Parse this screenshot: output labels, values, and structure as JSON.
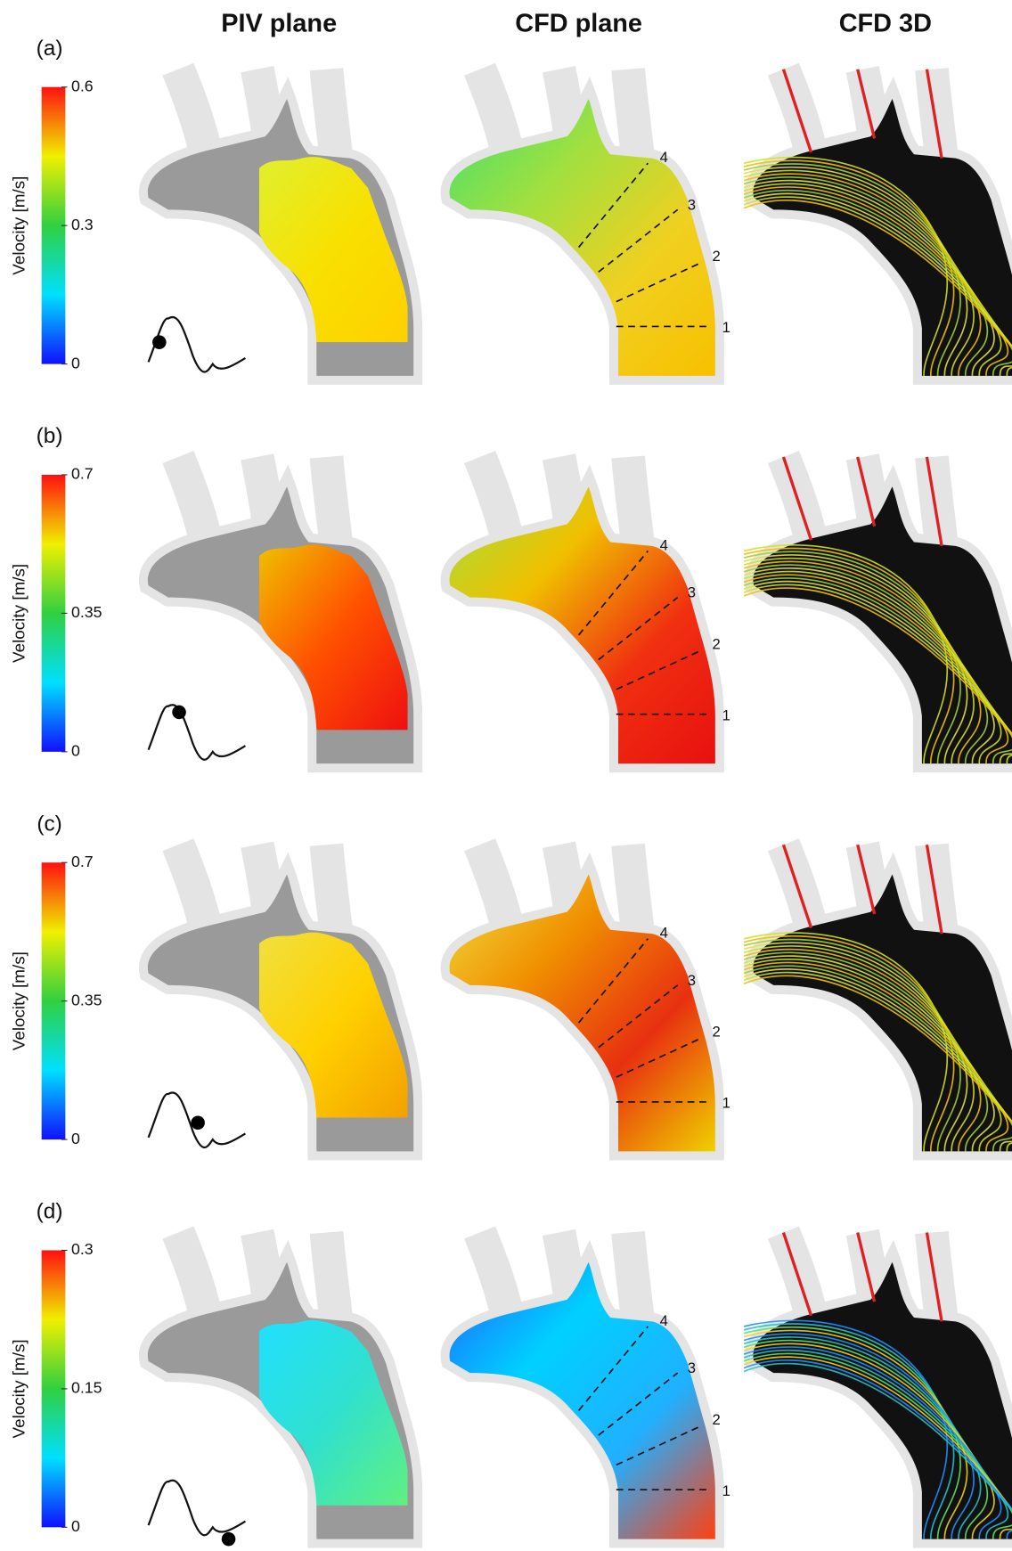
{
  "headers": [
    "PIV plane",
    "CFD plane",
    "CFD 3D"
  ],
  "panels": [
    {
      "label": "(a)",
      "colorbar": {
        "title": "Velocity [m/s]",
        "range": [
          0,
          0.6
        ],
        "ticks": [
          0,
          0.3,
          0.6
        ]
      },
      "sections": [
        "1",
        "2",
        "3",
        "4"
      ]
    },
    {
      "label": "(b)",
      "colorbar": {
        "title": "Velocity [m/s]",
        "range": [
          0,
          0.7
        ],
        "ticks": [
          0,
          0.35,
          0.7
        ]
      },
      "sections": [
        "1",
        "2",
        "3",
        "4"
      ]
    },
    {
      "label": "(c)",
      "colorbar": {
        "title": "Velocity [m/s]",
        "range": [
          0,
          0.7
        ],
        "ticks": [
          0,
          0.35,
          0.7
        ]
      },
      "sections": [
        "1",
        "2",
        "3",
        "4"
      ]
    },
    {
      "label": "(d)",
      "colorbar": {
        "title": "Velocity [m/s]",
        "range": [
          0,
          0.3
        ],
        "ticks": [
          0,
          0.15,
          0.3
        ]
      },
      "sections": [
        "1",
        "2",
        "3",
        "4"
      ]
    }
  ]
}
